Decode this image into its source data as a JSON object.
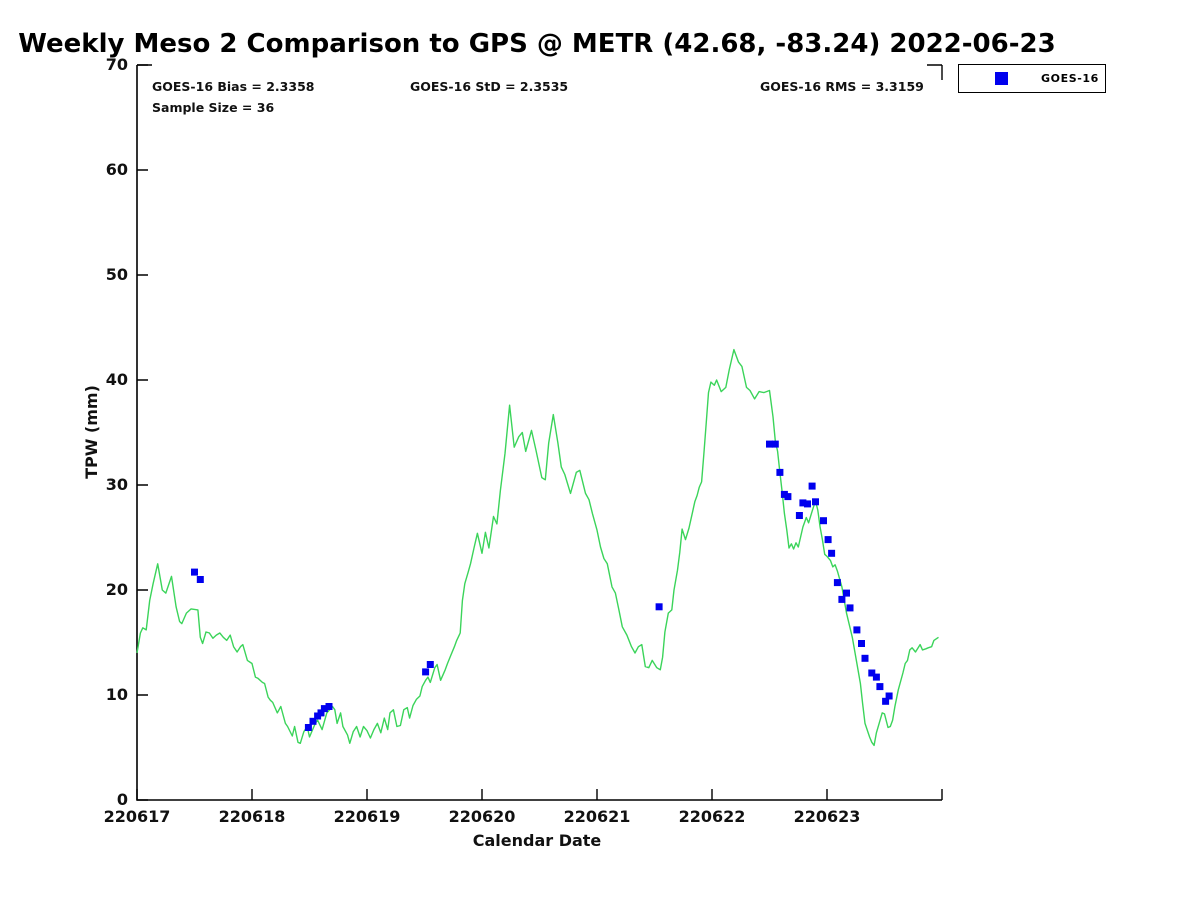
{
  "title": "Weekly Meso 2 Comparison to GPS @ METR (42.68, -83.24) 2022-06-23",
  "stats": {
    "bias_label": "GOES-16 Bias = 2.3358",
    "std_label": "GOES-16 StD = 2.3535",
    "rms_label": "GOES-16 RMS = 3.3159",
    "sample_label": "Sample Size = 36"
  },
  "legend": {
    "label": "GOES-16",
    "marker_color": "#0000ee",
    "position": "top-right-outside"
  },
  "chart_data": {
    "type": "line",
    "title": "Weekly Meso 2 Comparison to GPS @ METR (42.68, -83.24) 2022-06-23",
    "xlabel": "Calendar Date",
    "ylabel": "TPW (mm)",
    "x_tick_labels": [
      "220617",
      "220618",
      "220619",
      "220620",
      "220621",
      "220622",
      "220623"
    ],
    "y_tick_values": [
      0,
      10,
      20,
      30,
      40,
      50,
      60,
      70
    ],
    "ylim": [
      0,
      70
    ],
    "xlim_days": [
      0,
      7
    ],
    "grid": false,
    "stats": {
      "bias": 2.3358,
      "std": 2.3535,
      "rms": 3.3159,
      "sample_size": 36
    },
    "series": [
      {
        "name": "GPS",
        "render": "line",
        "color": "#3bd45a",
        "points": [
          [
            0.0,
            14.0
          ],
          [
            0.03,
            15.9
          ],
          [
            0.05,
            16.4
          ],
          [
            0.08,
            16.2
          ],
          [
            0.11,
            19.0
          ],
          [
            0.14,
            20.6
          ],
          [
            0.18,
            22.5
          ],
          [
            0.22,
            20.0
          ],
          [
            0.25,
            19.7
          ],
          [
            0.3,
            21.3
          ],
          [
            0.34,
            18.4
          ],
          [
            0.37,
            17.0
          ],
          [
            0.39,
            16.8
          ],
          [
            0.43,
            17.8
          ],
          [
            0.47,
            18.2
          ],
          [
            0.53,
            18.1
          ],
          [
            0.55,
            15.5
          ],
          [
            0.57,
            14.9
          ],
          [
            0.6,
            16.0
          ],
          [
            0.63,
            15.9
          ],
          [
            0.66,
            15.4
          ],
          [
            0.69,
            15.7
          ],
          [
            0.72,
            15.9
          ],
          [
            0.75,
            15.5
          ],
          [
            0.78,
            15.2
          ],
          [
            0.81,
            15.7
          ],
          [
            0.84,
            14.6
          ],
          [
            0.87,
            14.1
          ],
          [
            0.9,
            14.6
          ],
          [
            0.92,
            14.8
          ],
          [
            0.96,
            13.3
          ],
          [
            1.0,
            13.0
          ],
          [
            1.03,
            11.7
          ],
          [
            1.05,
            11.6
          ],
          [
            1.09,
            11.2
          ],
          [
            1.11,
            11.1
          ],
          [
            1.14,
            9.8
          ],
          [
            1.16,
            9.5
          ],
          [
            1.18,
            9.3
          ],
          [
            1.22,
            8.3
          ],
          [
            1.25,
            8.9
          ],
          [
            1.29,
            7.3
          ],
          [
            1.31,
            7.0
          ],
          [
            1.35,
            6.1
          ],
          [
            1.37,
            7.0
          ],
          [
            1.4,
            5.5
          ],
          [
            1.42,
            5.4
          ],
          [
            1.45,
            6.5
          ],
          [
            1.48,
            7.0
          ],
          [
            1.5,
            6.0
          ],
          [
            1.55,
            7.3
          ],
          [
            1.57,
            7.6
          ],
          [
            1.61,
            6.7
          ],
          [
            1.65,
            8.3
          ],
          [
            1.7,
            8.9
          ],
          [
            1.72,
            8.6
          ],
          [
            1.74,
            7.3
          ],
          [
            1.77,
            8.3
          ],
          [
            1.79,
            7.0
          ],
          [
            1.83,
            6.2
          ],
          [
            1.85,
            5.4
          ],
          [
            1.88,
            6.5
          ],
          [
            1.91,
            7.0
          ],
          [
            1.94,
            6.0
          ],
          [
            1.97,
            7.0
          ],
          [
            2.0,
            6.6
          ],
          [
            2.03,
            5.9
          ],
          [
            2.06,
            6.7
          ],
          [
            2.09,
            7.3
          ],
          [
            2.12,
            6.4
          ],
          [
            2.15,
            7.8
          ],
          [
            2.18,
            6.7
          ],
          [
            2.2,
            8.3
          ],
          [
            2.23,
            8.6
          ],
          [
            2.26,
            7.0
          ],
          [
            2.29,
            7.1
          ],
          [
            2.32,
            8.6
          ],
          [
            2.35,
            8.8
          ],
          [
            2.37,
            7.8
          ],
          [
            2.4,
            9.0
          ],
          [
            2.43,
            9.6
          ],
          [
            2.46,
            9.9
          ],
          [
            2.48,
            10.8
          ],
          [
            2.51,
            11.4
          ],
          [
            2.53,
            11.7
          ],
          [
            2.55,
            11.2
          ],
          [
            2.59,
            12.6
          ],
          [
            2.61,
            12.9
          ],
          [
            2.64,
            11.4
          ],
          [
            2.68,
            12.4
          ],
          [
            2.7,
            13.0
          ],
          [
            2.73,
            13.8
          ],
          [
            2.76,
            14.6
          ],
          [
            2.78,
            15.2
          ],
          [
            2.81,
            15.9
          ],
          [
            2.83,
            19.0
          ],
          [
            2.85,
            20.6
          ],
          [
            2.88,
            21.7
          ],
          [
            2.9,
            22.5
          ],
          [
            2.93,
            24.0
          ],
          [
            2.96,
            25.4
          ],
          [
            3.0,
            23.5
          ],
          [
            3.03,
            25.5
          ],
          [
            3.06,
            24.0
          ],
          [
            3.1,
            27.0
          ],
          [
            3.13,
            26.3
          ],
          [
            3.16,
            29.5
          ],
          [
            3.2,
            33.0
          ],
          [
            3.24,
            37.6
          ],
          [
            3.28,
            33.6
          ],
          [
            3.32,
            34.6
          ],
          [
            3.35,
            35.0
          ],
          [
            3.38,
            33.2
          ],
          [
            3.43,
            35.2
          ],
          [
            3.47,
            33.3
          ],
          [
            3.52,
            30.7
          ],
          [
            3.55,
            30.5
          ],
          [
            3.58,
            34.0
          ],
          [
            3.62,
            36.7
          ],
          [
            3.66,
            34.0
          ],
          [
            3.69,
            31.7
          ],
          [
            3.72,
            31.0
          ],
          [
            3.77,
            29.2
          ],
          [
            3.82,
            31.2
          ],
          [
            3.85,
            31.4
          ],
          [
            3.9,
            29.2
          ],
          [
            3.93,
            28.6
          ],
          [
            3.96,
            27.3
          ],
          [
            4.0,
            25.7
          ],
          [
            4.03,
            24.1
          ],
          [
            4.06,
            23.0
          ],
          [
            4.09,
            22.5
          ],
          [
            4.13,
            20.3
          ],
          [
            4.16,
            19.7
          ],
          [
            4.19,
            18.1
          ],
          [
            4.22,
            16.5
          ],
          [
            4.26,
            15.7
          ],
          [
            4.3,
            14.6
          ],
          [
            4.33,
            14.0
          ],
          [
            4.36,
            14.6
          ],
          [
            4.39,
            14.8
          ],
          [
            4.42,
            12.7
          ],
          [
            4.45,
            12.6
          ],
          [
            4.48,
            13.3
          ],
          [
            4.52,
            12.6
          ],
          [
            4.55,
            12.4
          ],
          [
            4.57,
            13.6
          ],
          [
            4.59,
            16.0
          ],
          [
            4.62,
            17.8
          ],
          [
            4.65,
            18.1
          ],
          [
            4.67,
            20.0
          ],
          [
            4.7,
            21.9
          ],
          [
            4.72,
            23.6
          ],
          [
            4.74,
            25.8
          ],
          [
            4.77,
            24.8
          ],
          [
            4.8,
            25.9
          ],
          [
            4.83,
            27.4
          ],
          [
            4.85,
            28.4
          ],
          [
            4.87,
            29.0
          ],
          [
            4.89,
            29.8
          ],
          [
            4.91,
            30.3
          ],
          [
            4.93,
            33.0
          ],
          [
            4.95,
            36.0
          ],
          [
            4.97,
            38.8
          ],
          [
            4.99,
            39.8
          ],
          [
            5.02,
            39.5
          ],
          [
            5.04,
            40.0
          ],
          [
            5.08,
            38.9
          ],
          [
            5.12,
            39.3
          ],
          [
            5.15,
            41.0
          ],
          [
            5.19,
            42.9
          ],
          [
            5.23,
            41.7
          ],
          [
            5.26,
            41.3
          ],
          [
            5.3,
            39.3
          ],
          [
            5.33,
            39.0
          ],
          [
            5.37,
            38.2
          ],
          [
            5.41,
            38.9
          ],
          [
            5.45,
            38.8
          ],
          [
            5.5,
            39.0
          ],
          [
            5.53,
            36.5
          ],
          [
            5.55,
            34.2
          ],
          [
            5.57,
            33.2
          ],
          [
            5.59,
            31.2
          ],
          [
            5.61,
            29.3
          ],
          [
            5.63,
            27.3
          ],
          [
            5.65,
            25.7
          ],
          [
            5.67,
            24.0
          ],
          [
            5.69,
            24.4
          ],
          [
            5.71,
            23.9
          ],
          [
            5.73,
            24.5
          ],
          [
            5.75,
            24.1
          ],
          [
            5.79,
            26.0
          ],
          [
            5.82,
            26.9
          ],
          [
            5.84,
            26.4
          ],
          [
            5.87,
            27.5
          ],
          [
            5.9,
            28.5
          ],
          [
            5.92,
            27.6
          ],
          [
            5.94,
            26.0
          ],
          [
            5.96,
            24.8
          ],
          [
            5.98,
            23.4
          ],
          [
            6.0,
            23.2
          ],
          [
            6.03,
            22.8
          ],
          [
            6.05,
            22.2
          ],
          [
            6.07,
            22.4
          ],
          [
            6.09,
            21.8
          ],
          [
            6.13,
            20.3
          ],
          [
            6.17,
            17.8
          ],
          [
            6.22,
            15.5
          ],
          [
            6.26,
            13.0
          ],
          [
            6.29,
            11.1
          ],
          [
            6.31,
            9.2
          ],
          [
            6.33,
            7.3
          ],
          [
            6.37,
            6.0
          ],
          [
            6.39,
            5.5
          ],
          [
            6.41,
            5.2
          ],
          [
            6.43,
            6.4
          ],
          [
            6.48,
            8.3
          ],
          [
            6.5,
            8.2
          ],
          [
            6.53,
            6.9
          ],
          [
            6.55,
            7.0
          ],
          [
            6.57,
            7.6
          ],
          [
            6.59,
            8.9
          ],
          [
            6.62,
            10.5
          ],
          [
            6.66,
            12.1
          ],
          [
            6.68,
            13.0
          ],
          [
            6.7,
            13.3
          ],
          [
            6.72,
            14.3
          ],
          [
            6.74,
            14.5
          ],
          [
            6.77,
            14.1
          ],
          [
            6.81,
            14.8
          ],
          [
            6.83,
            14.3
          ],
          [
            6.86,
            14.4
          ],
          [
            6.88,
            14.5
          ],
          [
            6.91,
            14.6
          ],
          [
            6.93,
            15.2
          ],
          [
            6.97,
            15.5
          ]
        ]
      },
      {
        "name": "GOES-16",
        "render": "scatter-square",
        "color": "#0000ee",
        "marker_size": 7,
        "points": [
          [
            0.5,
            21.7
          ],
          [
            0.55,
            21.0
          ],
          [
            1.49,
            6.9
          ],
          [
            1.53,
            7.5
          ],
          [
            1.57,
            8.0
          ],
          [
            1.6,
            8.3
          ],
          [
            1.63,
            8.7
          ],
          [
            1.67,
            8.9
          ],
          [
            2.51,
            12.2
          ],
          [
            2.55,
            12.9
          ],
          [
            4.54,
            18.4
          ],
          [
            5.5,
            33.9
          ],
          [
            5.55,
            33.9
          ],
          [
            5.59,
            31.2
          ],
          [
            5.63,
            29.1
          ],
          [
            5.66,
            28.9
          ],
          [
            5.76,
            27.1
          ],
          [
            5.79,
            28.3
          ],
          [
            5.83,
            28.2
          ],
          [
            5.87,
            29.9
          ],
          [
            5.9,
            28.4
          ],
          [
            5.97,
            26.6
          ],
          [
            6.01,
            24.8
          ],
          [
            6.04,
            23.5
          ],
          [
            6.09,
            20.7
          ],
          [
            6.13,
            19.1
          ],
          [
            6.17,
            19.7
          ],
          [
            6.2,
            18.3
          ],
          [
            6.26,
            16.2
          ],
          [
            6.3,
            14.9
          ],
          [
            6.33,
            13.5
          ],
          [
            6.39,
            12.1
          ],
          [
            6.43,
            11.7
          ],
          [
            6.46,
            10.8
          ],
          [
            6.51,
            9.4
          ],
          [
            6.54,
            9.9
          ]
        ]
      }
    ]
  }
}
